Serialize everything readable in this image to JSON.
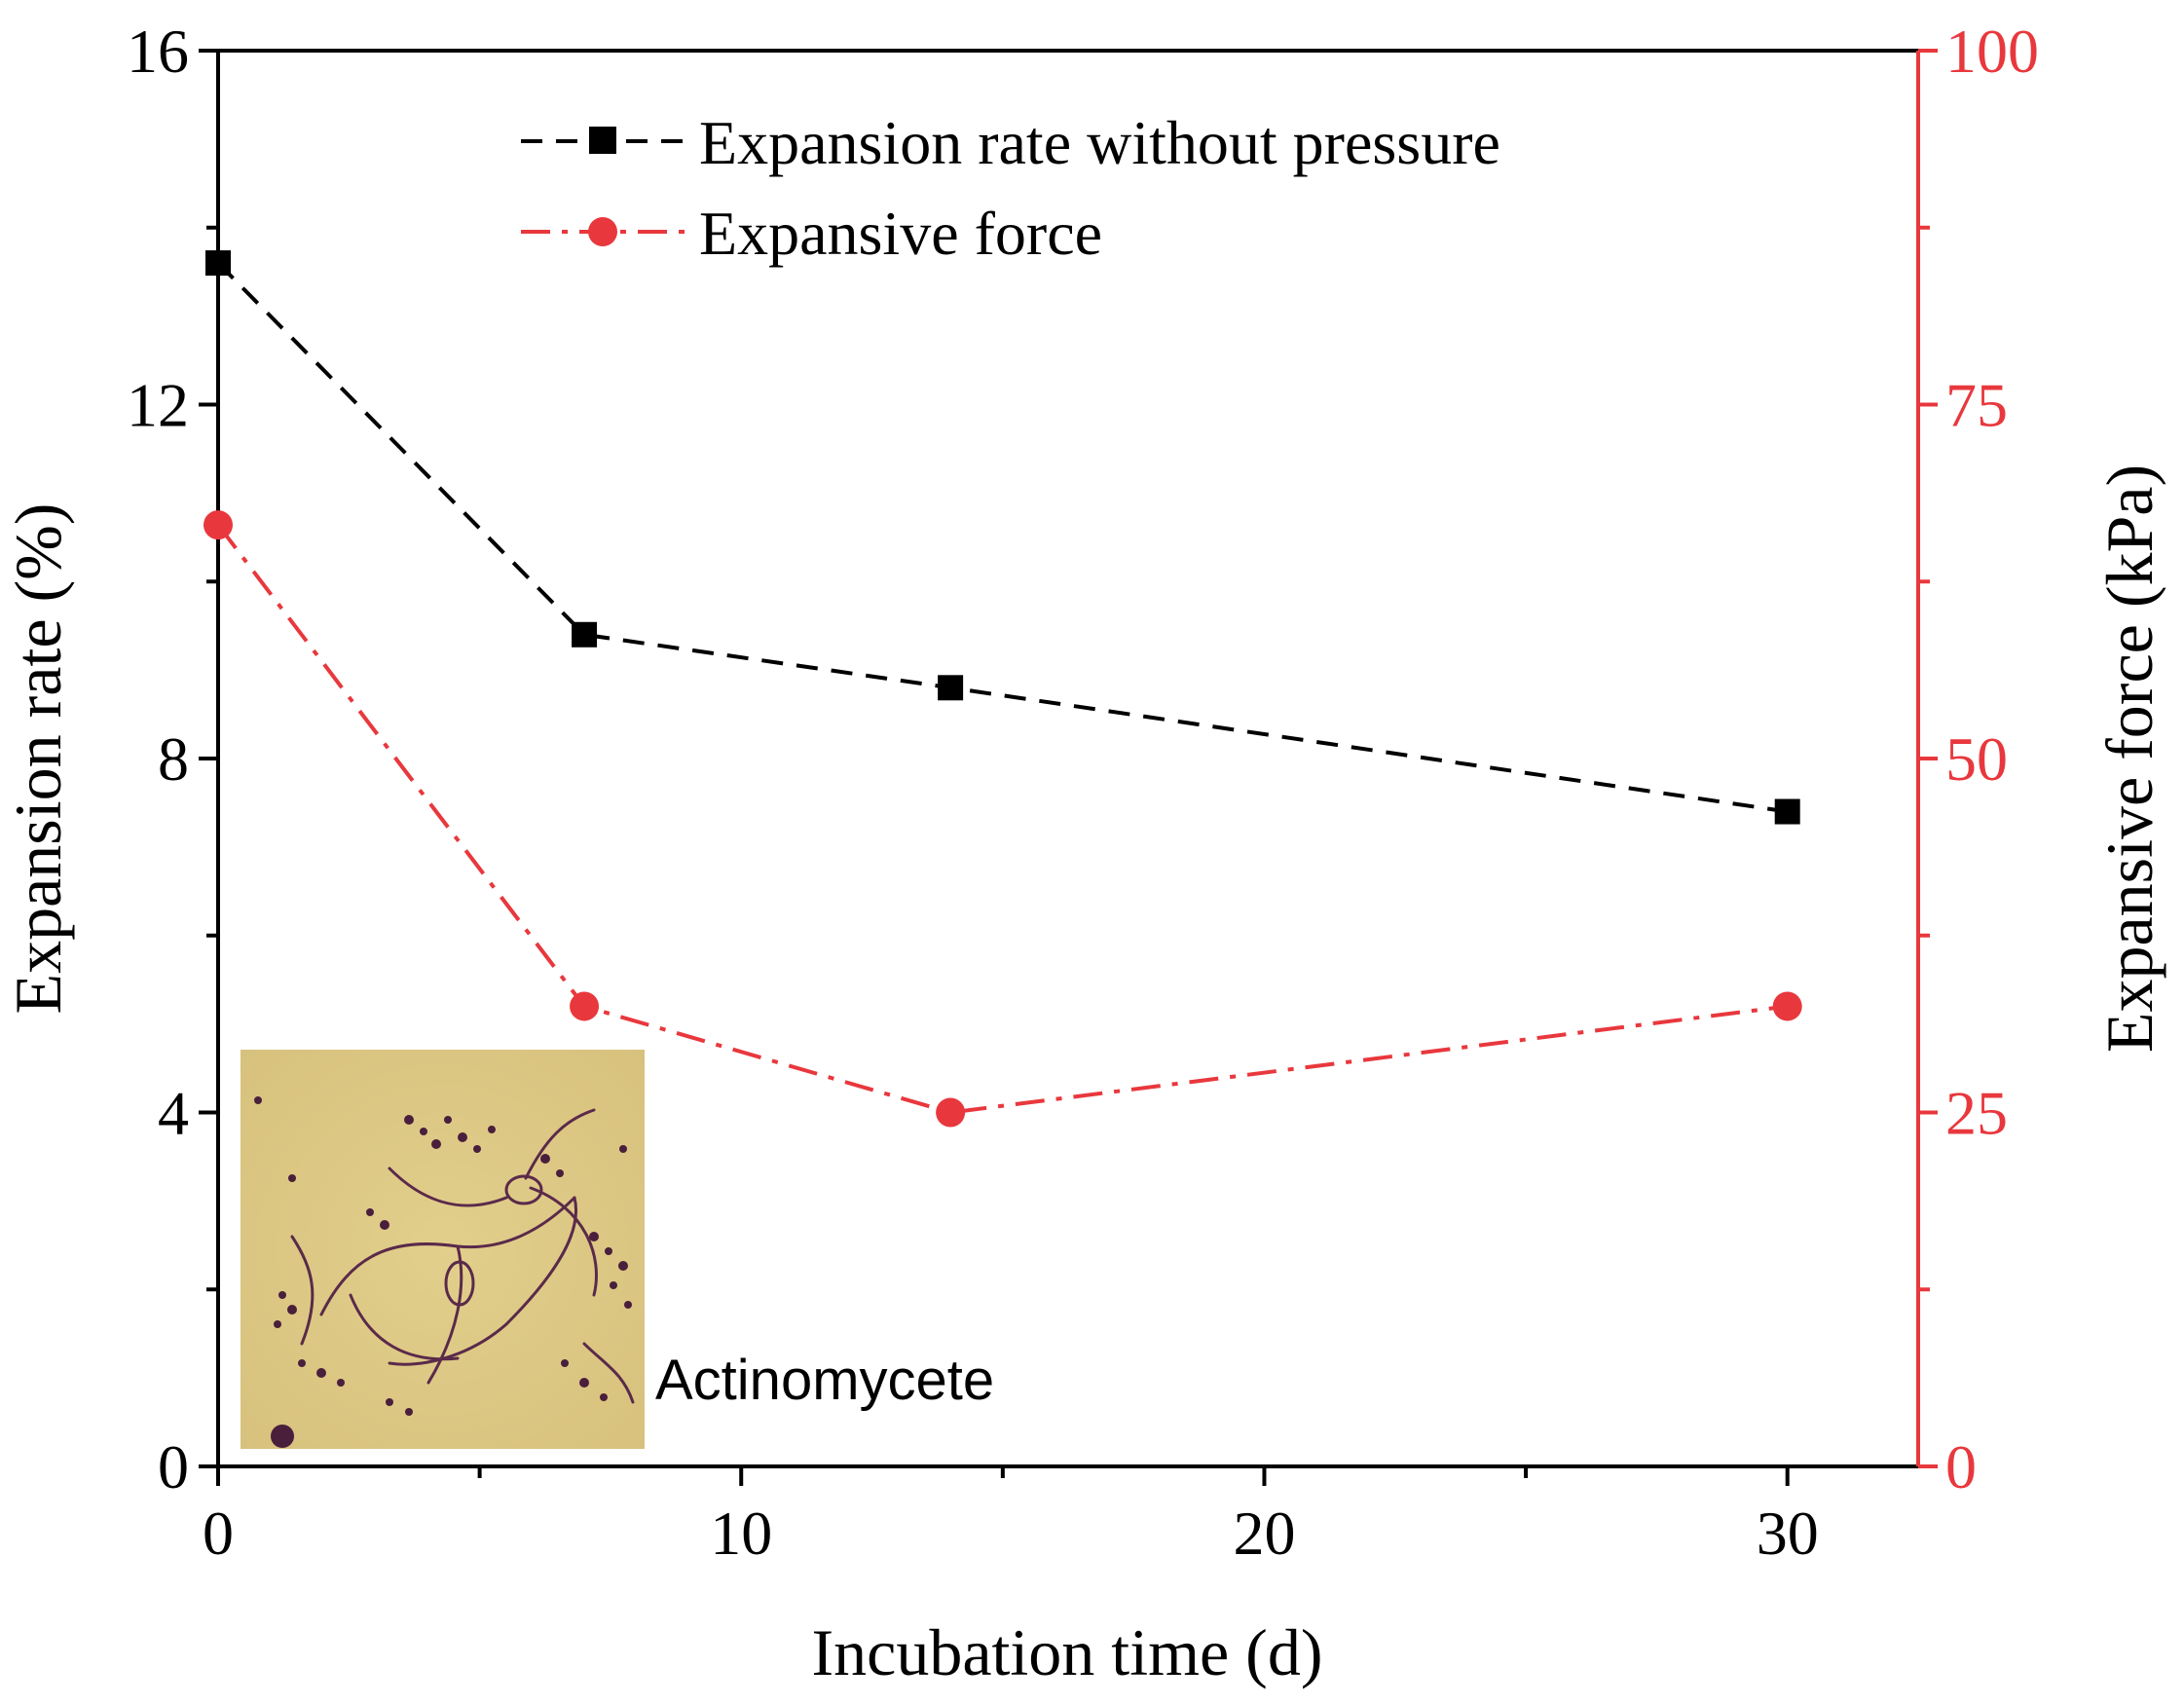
{
  "chart_data": {
    "type": "line",
    "xlabel": "Incubation time (d)",
    "ylabel_left": "Expansion rate (%)",
    "ylabel_right": "Expansive force (kPa)",
    "xlim": [
      0,
      32.5
    ],
    "ylim_left": [
      0,
      16
    ],
    "ylim_right": [
      0,
      100
    ],
    "x_ticks": [
      0,
      10,
      20,
      30
    ],
    "x_tick_labels": [
      "0",
      "10",
      "20",
      "30"
    ],
    "x_minor_ticks": [
      5,
      15,
      25
    ],
    "y_left_ticks": [
      0,
      4,
      8,
      12,
      16
    ],
    "y_left_tick_labels": [
      "0",
      "4",
      "8",
      "12",
      "16"
    ],
    "y_left_minor_ticks": [
      2,
      6,
      10,
      14
    ],
    "y_right_ticks": [
      0,
      25,
      50,
      75,
      100
    ],
    "y_right_tick_labels": [
      "0",
      "25",
      "50",
      "75",
      "100"
    ],
    "y_right_minor_ticks": [
      12.5,
      37.5,
      62.5,
      87.5
    ],
    "series": [
      {
        "name": "Expansion rate without pressure",
        "axis": "left",
        "x": [
          0,
          7,
          14,
          30
        ],
        "values": [
          13.6,
          9.4,
          8.8,
          7.4
        ],
        "color": "#000000",
        "marker": "square",
        "linestyle": "dashed"
      },
      {
        "name": "Expansive force",
        "axis": "right",
        "x": [
          0,
          7,
          14,
          30
        ],
        "values": [
          66.5,
          32.5,
          25,
          32.5
        ],
        "color": "#e8383d",
        "marker": "circle",
        "linestyle": "dash-dot"
      }
    ],
    "legend_position": "top-center",
    "grid": false,
    "inset": {
      "caption": "Actinomycete",
      "position": "bottom-left"
    }
  }
}
